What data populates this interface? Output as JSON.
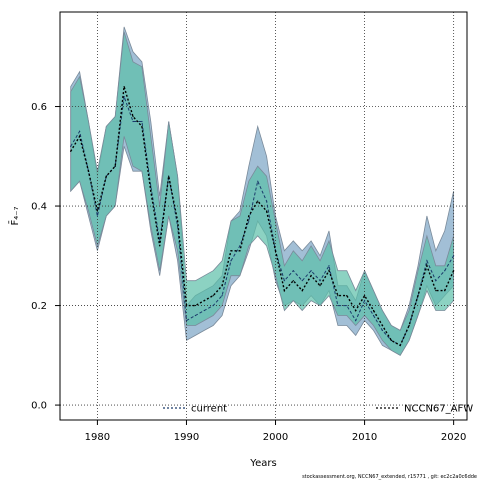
{
  "chart_data": {
    "type": "line",
    "ylabel": "F̄₄₋₇",
    "xlabel": "Years",
    "xlim": [
      1975.8,
      2021.5
    ],
    "ylim": [
      -0.03,
      0.79
    ],
    "x_ticks": [
      1980,
      1990,
      2000,
      2010,
      2020
    ],
    "y_ticks": [
      0.0,
      0.2,
      0.4,
      0.6
    ],
    "y_tick_labels": [
      "0.0",
      "0.2",
      "0.4",
      "0.6"
    ],
    "grid": true,
    "legend_position": "bottom",
    "x": [
      1977,
      1978,
      1979,
      1980,
      1981,
      1982,
      1983,
      1984,
      1985,
      1986,
      1987,
      1988,
      1989,
      1990,
      1991,
      1992,
      1993,
      1994,
      1995,
      1996,
      1997,
      1998,
      1999,
      2000,
      2001,
      2002,
      2003,
      2004,
      2005,
      2006,
      2007,
      2008,
      2009,
      2010,
      2011,
      2012,
      2013,
      2014,
      2015,
      2016,
      2017,
      2018,
      2019,
      2020
    ],
    "series": [
      {
        "name": "current",
        "color": "#7ba4c4",
        "line_color": "#1a3a6b",
        "values": [
          0.52,
          0.55,
          0.47,
          0.38,
          0.46,
          0.48,
          0.62,
          0.57,
          0.57,
          0.44,
          0.33,
          0.46,
          0.36,
          0.17,
          0.18,
          0.19,
          0.2,
          0.22,
          0.29,
          0.32,
          0.37,
          0.45,
          0.41,
          0.31,
          0.25,
          0.27,
          0.25,
          0.27,
          0.25,
          0.28,
          0.2,
          0.2,
          0.17,
          0.21,
          0.18,
          0.15,
          0.13,
          0.12,
          0.16,
          0.22,
          0.29,
          0.25,
          0.27,
          0.3
        ],
        "upper": [
          0.64,
          0.67,
          0.57,
          0.46,
          0.56,
          0.58,
          0.76,
          0.71,
          0.69,
          0.57,
          0.42,
          0.57,
          0.46,
          0.2,
          0.22,
          0.23,
          0.24,
          0.26,
          0.37,
          0.39,
          0.48,
          0.56,
          0.5,
          0.38,
          0.31,
          0.33,
          0.31,
          0.33,
          0.3,
          0.35,
          0.24,
          0.24,
          0.21,
          0.27,
          0.23,
          0.19,
          0.16,
          0.15,
          0.2,
          0.28,
          0.38,
          0.31,
          0.35,
          0.43
        ],
        "lower": [
          0.43,
          0.45,
          0.38,
          0.31,
          0.38,
          0.4,
          0.52,
          0.47,
          0.47,
          0.35,
          0.26,
          0.38,
          0.29,
          0.13,
          0.14,
          0.15,
          0.16,
          0.18,
          0.24,
          0.26,
          0.31,
          0.37,
          0.34,
          0.25,
          0.2,
          0.21,
          0.2,
          0.22,
          0.2,
          0.23,
          0.16,
          0.16,
          0.14,
          0.17,
          0.15,
          0.12,
          0.11,
          0.1,
          0.13,
          0.18,
          0.24,
          0.2,
          0.22,
          0.24
        ]
      },
      {
        "name": "NCCN67_AFW",
        "color": "#5bbfa8",
        "line_color": "#000000",
        "values": [
          0.51,
          0.54,
          0.47,
          0.39,
          0.46,
          0.48,
          0.64,
          0.58,
          0.56,
          0.43,
          0.32,
          0.46,
          0.37,
          0.2,
          0.2,
          0.21,
          0.22,
          0.24,
          0.31,
          0.31,
          0.38,
          0.41,
          0.39,
          0.31,
          0.23,
          0.25,
          0.23,
          0.26,
          0.24,
          0.27,
          0.22,
          0.22,
          0.19,
          0.22,
          0.19,
          0.16,
          0.13,
          0.12,
          0.16,
          0.22,
          0.28,
          0.23,
          0.23,
          0.27
        ],
        "upper": [
          0.63,
          0.66,
          0.57,
          0.47,
          0.56,
          0.58,
          0.75,
          0.69,
          0.68,
          0.54,
          0.4,
          0.57,
          0.46,
          0.25,
          0.25,
          0.26,
          0.27,
          0.29,
          0.37,
          0.38,
          0.45,
          0.48,
          0.46,
          0.37,
          0.28,
          0.31,
          0.29,
          0.32,
          0.29,
          0.33,
          0.27,
          0.27,
          0.23,
          0.27,
          0.23,
          0.19,
          0.16,
          0.15,
          0.19,
          0.27,
          0.34,
          0.28,
          0.28,
          0.34
        ],
        "lower": [
          0.43,
          0.45,
          0.39,
          0.32,
          0.38,
          0.4,
          0.54,
          0.48,
          0.47,
          0.36,
          0.27,
          0.38,
          0.31,
          0.16,
          0.16,
          0.17,
          0.18,
          0.2,
          0.26,
          0.26,
          0.32,
          0.34,
          0.32,
          0.26,
          0.19,
          0.21,
          0.19,
          0.21,
          0.2,
          0.22,
          0.18,
          0.18,
          0.16,
          0.18,
          0.16,
          0.13,
          0.11,
          0.1,
          0.13,
          0.18,
          0.23,
          0.19,
          0.19,
          0.21
        ]
      }
    ]
  },
  "footer": "stockassessment.org, NCCN67_extended, r15771 , git: ec2c2a0c6dde"
}
